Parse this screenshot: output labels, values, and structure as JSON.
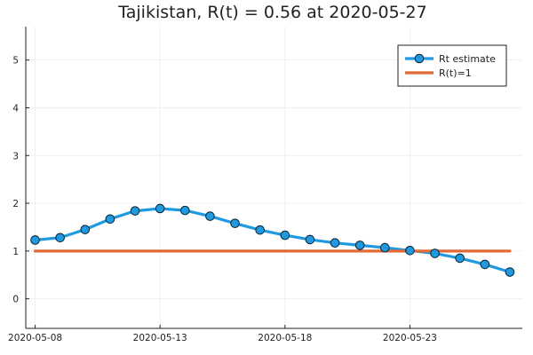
{
  "chart_data": {
    "type": "line",
    "title": "Tajikistan, R(t) = 0.56 at 2020-05-27",
    "xlabel": "",
    "ylabel": "",
    "x_ticks": [
      "2020-05-08",
      "2020-05-13",
      "2020-05-18",
      "2020-05-23"
    ],
    "y_ticks": [
      0,
      1,
      2,
      3,
      4,
      5
    ],
    "xlim": [
      "2020-05-07 15:00",
      "2020-05-27 12:00"
    ],
    "ylim": [
      -0.62,
      5.7
    ],
    "grid": true,
    "legend_position": "top-right",
    "series": [
      {
        "name": "Rt estimate",
        "color": "#1f9ae0",
        "marker": "circle",
        "x": [
          "2020-05-08",
          "2020-05-09",
          "2020-05-10",
          "2020-05-11",
          "2020-05-12",
          "2020-05-13",
          "2020-05-14",
          "2020-05-15",
          "2020-05-16",
          "2020-05-17",
          "2020-05-18",
          "2020-05-19",
          "2020-05-20",
          "2020-05-21",
          "2020-05-22",
          "2020-05-23",
          "2020-05-24",
          "2020-05-25",
          "2020-05-26",
          "2020-05-27"
        ],
        "y": [
          1.23,
          1.28,
          1.45,
          1.67,
          1.84,
          1.89,
          1.85,
          1.73,
          1.58,
          1.44,
          1.33,
          1.24,
          1.17,
          1.12,
          1.07,
          1.01,
          0.95,
          0.85,
          0.72,
          0.56
        ]
      },
      {
        "name": "R(t)=1",
        "color": "#e26a39",
        "marker": "none",
        "x": [
          "2020-05-08",
          "2020-05-27"
        ],
        "y": [
          1,
          1
        ]
      }
    ]
  }
}
